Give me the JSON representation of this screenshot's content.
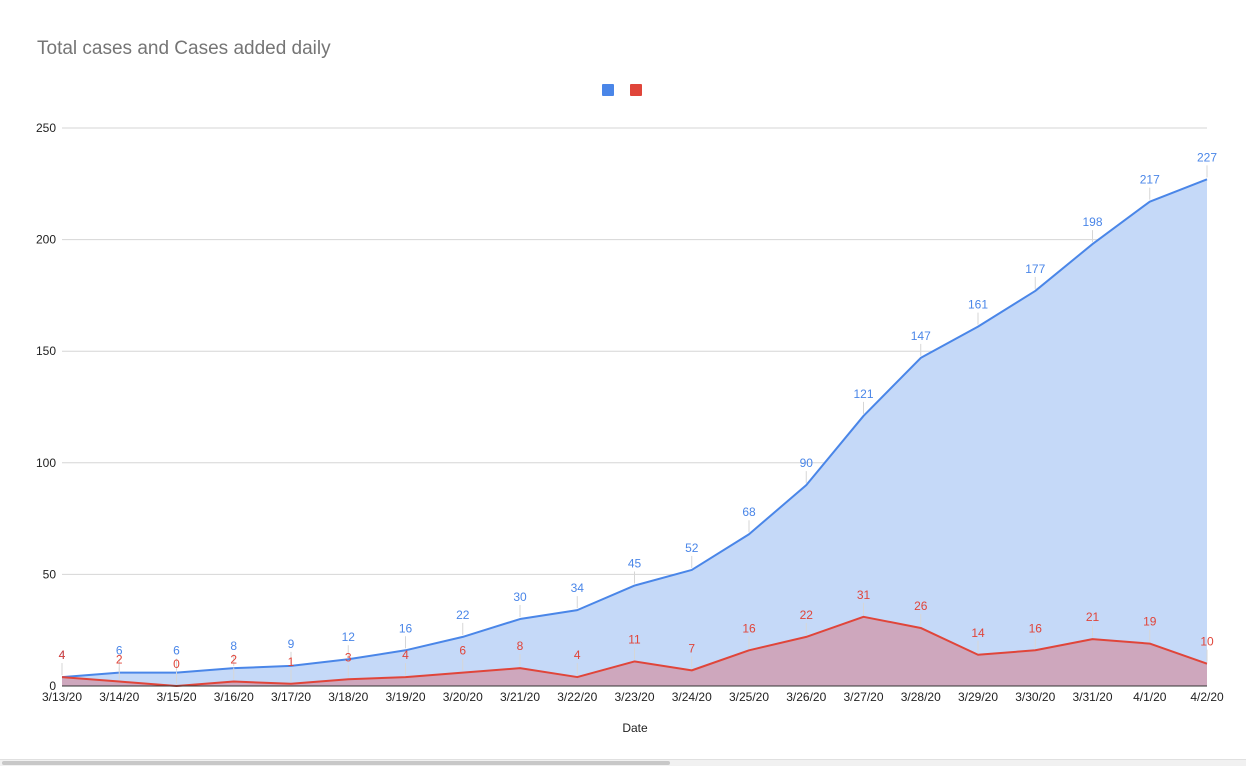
{
  "chart_data": {
    "type": "area",
    "title": "Total cases and Cases added daily",
    "xlabel": "Date",
    "ylabel": "",
    "ylim": [
      0,
      250
    ],
    "yticks": [
      0,
      50,
      100,
      150,
      200,
      250
    ],
    "grid": true,
    "legend": "top-center",
    "categories": [
      "3/13/20",
      "3/14/20",
      "3/15/20",
      "3/16/20",
      "3/17/20",
      "3/18/20",
      "3/19/20",
      "3/20/20",
      "3/21/20",
      "3/22/20",
      "3/23/20",
      "3/24/20",
      "3/25/20",
      "3/26/20",
      "3/27/20",
      "3/28/20",
      "3/29/20",
      "3/30/20",
      "3/31/20",
      "4/1/20",
      "4/2/20"
    ],
    "series": [
      {
        "values": [
          4,
          6,
          6,
          8,
          9,
          12,
          16,
          22,
          30,
          34,
          45,
          52,
          68,
          90,
          121,
          147,
          161,
          177,
          198,
          217,
          227
        ],
        "line_color": "#4a86e8",
        "fill_color": "#c5d9f8",
        "label_color": "#4a86e8"
      },
      {
        "values": [
          4,
          2,
          0,
          2,
          1,
          3,
          4,
          6,
          8,
          4,
          11,
          7,
          16,
          22,
          31,
          26,
          14,
          16,
          21,
          19,
          10
        ],
        "line_color": "#e0453a",
        "fill_color": "#cea7bd",
        "label_color": "#e0453a"
      }
    ]
  }
}
